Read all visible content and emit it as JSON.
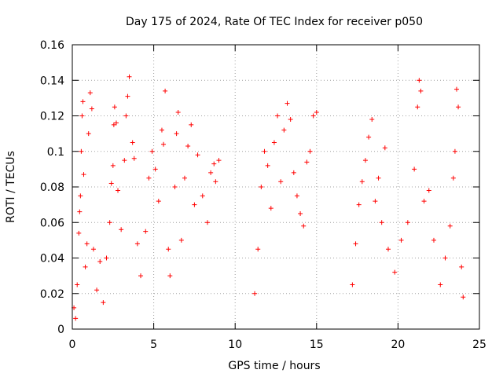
{
  "chart_data": {
    "type": "scatter",
    "title": "Day 175 of 2024, Rate Of TEC Index for receiver p050",
    "xlabel": "GPS time / hours",
    "ylabel": "ROTI / TECUs",
    "xlim": [
      0,
      25
    ],
    "ylim": [
      0,
      0.16
    ],
    "x_ticks": [
      "0",
      "5",
      "10",
      "15",
      "20",
      "25"
    ],
    "y_ticks": [
      "0",
      "0.02",
      "0.04",
      "0.06",
      "0.08",
      "0.1",
      "0.12",
      "0.14",
      "0.16"
    ],
    "grid": true,
    "marker": "+",
    "series": [
      {
        "color": "#ff0000",
        "points": [
          [
            0.1,
            0.012
          ],
          [
            0.2,
            0.006
          ],
          [
            0.3,
            0.025
          ],
          [
            0.4,
            0.054
          ],
          [
            0.45,
            0.066
          ],
          [
            0.5,
            0.075
          ],
          [
            0.55,
            0.1
          ],
          [
            0.6,
            0.12
          ],
          [
            0.65,
            0.128
          ],
          [
            0.7,
            0.087
          ],
          [
            0.8,
            0.035
          ],
          [
            0.9,
            0.048
          ],
          [
            1.0,
            0.11
          ],
          [
            1.1,
            0.133
          ],
          [
            1.2,
            0.124
          ],
          [
            1.3,
            0.045
          ],
          [
            1.5,
            0.022
          ],
          [
            1.7,
            0.038
          ],
          [
            1.9,
            0.015
          ],
          [
            2.1,
            0.04
          ],
          [
            2.3,
            0.06
          ],
          [
            2.4,
            0.082
          ],
          [
            2.5,
            0.092
          ],
          [
            2.55,
            0.115
          ],
          [
            2.6,
            0.125
          ],
          [
            2.7,
            0.116
          ],
          [
            2.8,
            0.078
          ],
          [
            3.0,
            0.056
          ],
          [
            3.2,
            0.095
          ],
          [
            3.3,
            0.12
          ],
          [
            3.4,
            0.131
          ],
          [
            3.5,
            0.142
          ],
          [
            3.7,
            0.105
          ],
          [
            3.8,
            0.096
          ],
          [
            4.0,
            0.048
          ],
          [
            4.2,
            0.03
          ],
          [
            4.5,
            0.055
          ],
          [
            4.7,
            0.085
          ],
          [
            4.9,
            0.1
          ],
          [
            5.1,
            0.09
          ],
          [
            5.3,
            0.072
          ],
          [
            5.5,
            0.112
          ],
          [
            5.6,
            0.104
          ],
          [
            5.7,
            0.134
          ],
          [
            5.9,
            0.045
          ],
          [
            6.0,
            0.03
          ],
          [
            6.3,
            0.08
          ],
          [
            6.4,
            0.11
          ],
          [
            6.5,
            0.122
          ],
          [
            6.7,
            0.05
          ],
          [
            6.9,
            0.085
          ],
          [
            7.1,
            0.103
          ],
          [
            7.3,
            0.115
          ],
          [
            7.5,
            0.07
          ],
          [
            7.7,
            0.098
          ],
          [
            8.0,
            0.075
          ],
          [
            8.3,
            0.06
          ],
          [
            8.5,
            0.088
          ],
          [
            8.7,
            0.093
          ],
          [
            8.8,
            0.083
          ],
          [
            9.0,
            0.095
          ],
          [
            11.2,
            0.02
          ],
          [
            11.4,
            0.045
          ],
          [
            11.6,
            0.08
          ],
          [
            11.8,
            0.1
          ],
          [
            12.0,
            0.092
          ],
          [
            12.2,
            0.068
          ],
          [
            12.4,
            0.105
          ],
          [
            12.6,
            0.12
          ],
          [
            12.8,
            0.083
          ],
          [
            13.0,
            0.112
          ],
          [
            13.2,
            0.127
          ],
          [
            13.4,
            0.118
          ],
          [
            13.6,
            0.088
          ],
          [
            13.8,
            0.075
          ],
          [
            14.0,
            0.065
          ],
          [
            14.2,
            0.058
          ],
          [
            14.4,
            0.094
          ],
          [
            14.6,
            0.1
          ],
          [
            14.8,
            0.12
          ],
          [
            15.0,
            0.122
          ],
          [
            17.2,
            0.025
          ],
          [
            17.4,
            0.048
          ],
          [
            17.6,
            0.07
          ],
          [
            17.8,
            0.083
          ],
          [
            18.0,
            0.095
          ],
          [
            18.2,
            0.108
          ],
          [
            18.4,
            0.118
          ],
          [
            18.6,
            0.072
          ],
          [
            18.8,
            0.085
          ],
          [
            19.0,
            0.06
          ],
          [
            19.2,
            0.102
          ],
          [
            19.4,
            0.045
          ],
          [
            19.8,
            0.032
          ],
          [
            20.2,
            0.05
          ],
          [
            20.6,
            0.06
          ],
          [
            21.0,
            0.09
          ],
          [
            21.2,
            0.125
          ],
          [
            21.3,
            0.14
          ],
          [
            21.4,
            0.134
          ],
          [
            21.6,
            0.072
          ],
          [
            21.9,
            0.078
          ],
          [
            22.2,
            0.05
          ],
          [
            22.6,
            0.025
          ],
          [
            22.9,
            0.04
          ],
          [
            23.2,
            0.058
          ],
          [
            23.4,
            0.085
          ],
          [
            23.5,
            0.1
          ],
          [
            23.6,
            0.135
          ],
          [
            23.7,
            0.125
          ],
          [
            23.9,
            0.035
          ],
          [
            24.0,
            0.018
          ]
        ]
      }
    ]
  }
}
